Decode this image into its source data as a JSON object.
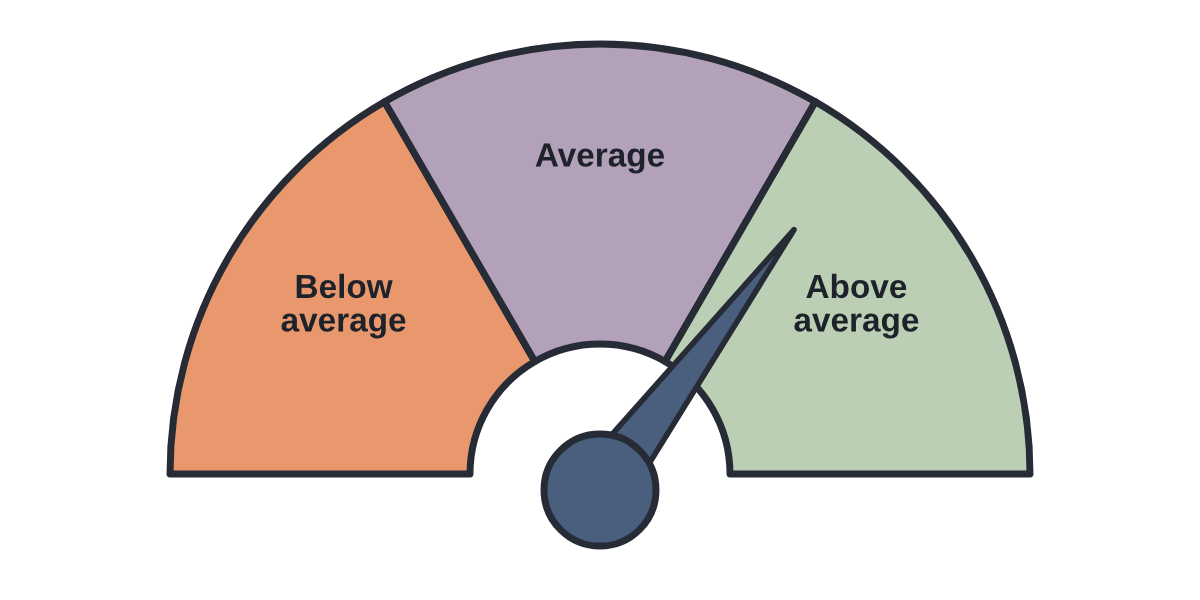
{
  "chart_data": {
    "type": "donut",
    "categories": [
      "Below average",
      "Average",
      "Above average"
    ],
    "values": [
      33.3,
      33.4,
      33.3
    ],
    "colors": [
      "#e9976c",
      "#b3a1b9",
      "#bacfb3"
    ],
    "needle": "Above average"
  }
}
